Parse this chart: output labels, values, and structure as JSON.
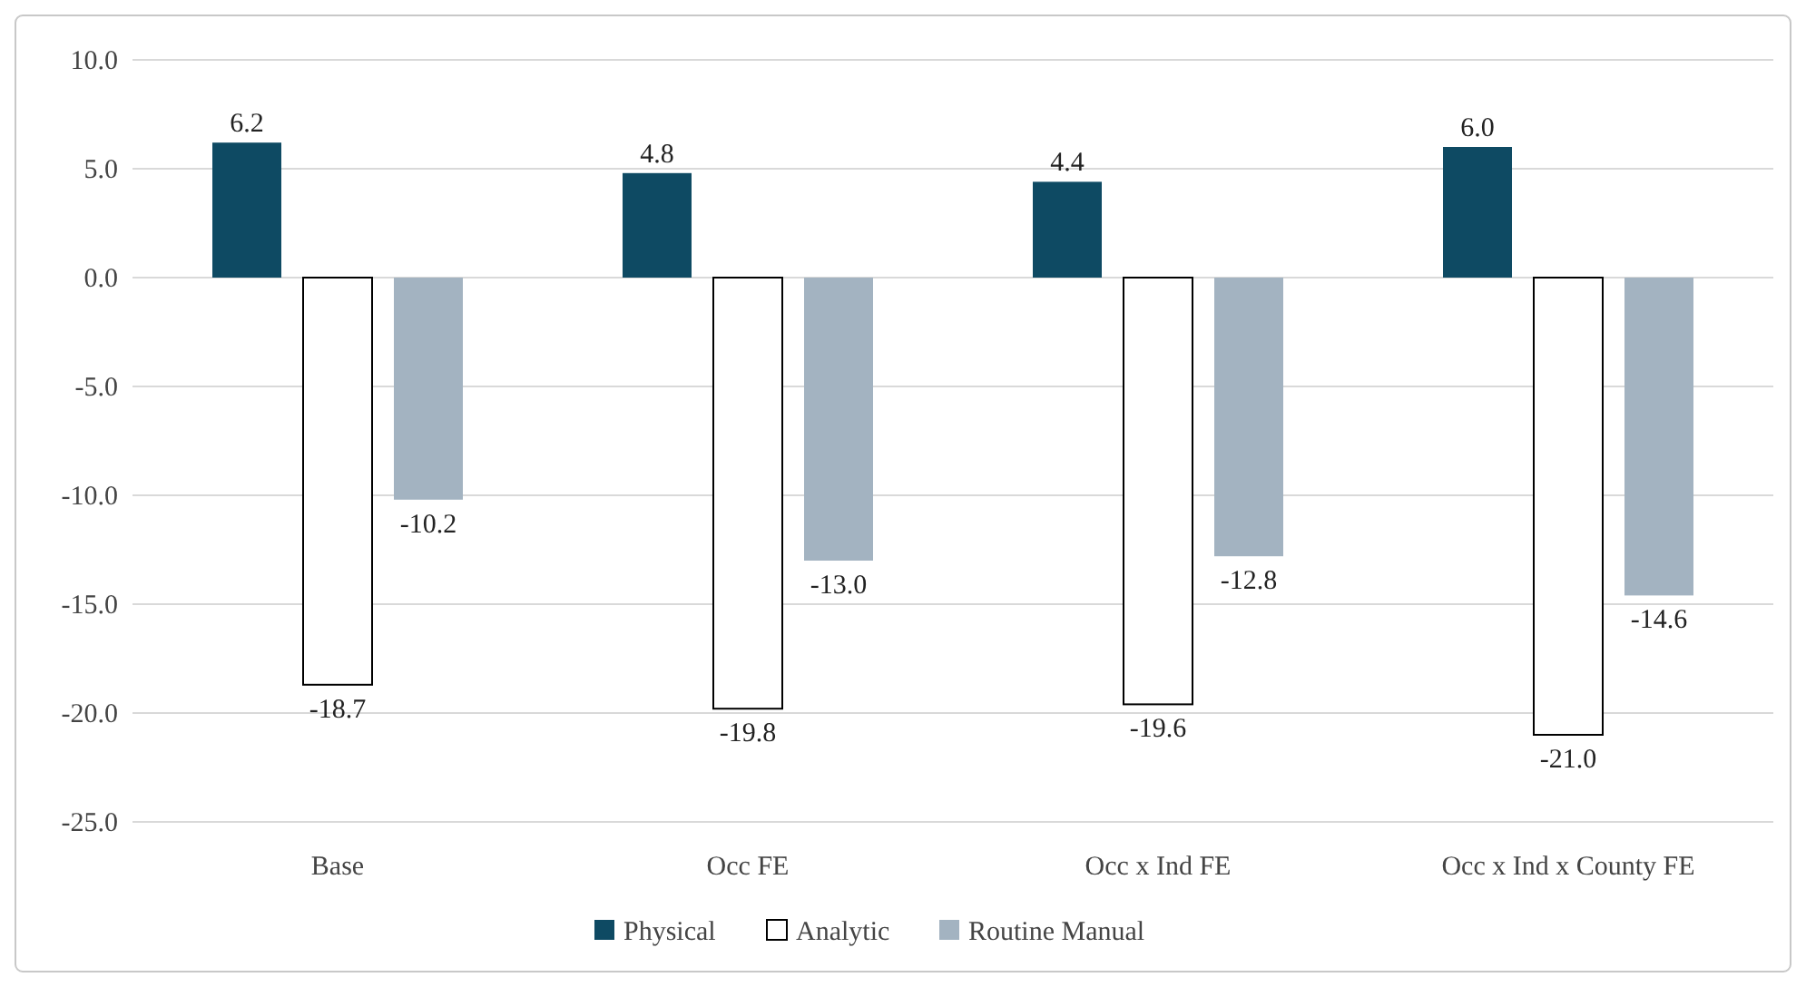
{
  "chart_data": {
    "type": "bar",
    "categories": [
      "Base",
      "Occ FE",
      "Occ x Ind FE",
      "Occ x Ind x County FE"
    ],
    "series": [
      {
        "name": "Physical",
        "color": "#0e4a63",
        "values": [
          6.2,
          4.8,
          4.4,
          6.0
        ],
        "value_labels": [
          "6.2",
          "4.8",
          "4.4",
          "6.0"
        ]
      },
      {
        "name": "Analytic",
        "color": "#ffffff",
        "values": [
          -18.7,
          -19.8,
          -19.6,
          -21.0
        ],
        "value_labels": [
          "-18.7",
          "-19.8",
          "-19.6",
          "-21.0"
        ]
      },
      {
        "name": "Routine Manual",
        "color": "#a3b3c1",
        "values": [
          -10.2,
          -13.0,
          -12.8,
          -14.6
        ],
        "value_labels": [
          "-10.2",
          "-13.0",
          "-12.8",
          "-14.6"
        ]
      }
    ],
    "ylim": [
      -25,
      10
    ],
    "yticks": [
      {
        "value": 10,
        "label": "10.0"
      },
      {
        "value": 5,
        "label": "5.0"
      },
      {
        "value": 0,
        "label": "0.0"
      },
      {
        "value": -5,
        "label": "-5.0"
      },
      {
        "value": -10,
        "label": "-10.0"
      },
      {
        "value": -15,
        "label": "-15.0"
      },
      {
        "value": -20,
        "label": "-20.0"
      },
      {
        "value": -25,
        "label": "-25.0"
      }
    ],
    "grid": "y",
    "legend": "bottom"
  }
}
